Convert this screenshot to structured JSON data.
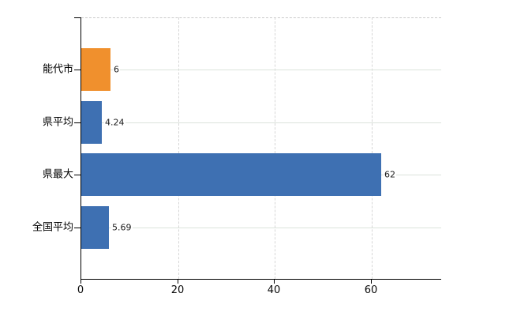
{
  "chart_data": {
    "type": "bar",
    "orientation": "horizontal",
    "title": "",
    "xlabel": "",
    "ylabel": "",
    "categories": [
      "能代市",
      "県平均",
      "県最大",
      "全国平均"
    ],
    "values": [
      6,
      4.24,
      62,
      5.69
    ],
    "value_labels": [
      "6",
      "4.24",
      "62",
      "5.69"
    ],
    "bar_colors": [
      "#f0902d",
      "#3e70b2",
      "#3e70b2",
      "#3e70b2"
    ],
    "x_tick_labels": [
      "0",
      "20",
      "40",
      "60"
    ],
    "x_tick_values": [
      0,
      20,
      40,
      60
    ],
    "xlim": [
      0,
      74.5
    ],
    "grid": true,
    "legend_position": "none"
  },
  "colors": {
    "background": "#ffffff",
    "accent_orange": "#f0902d",
    "bar_blue": "#3e70b2",
    "grid_horizontal": "#dce3dc",
    "grid_vertical": "#d6d6d6",
    "axis": "#000000",
    "label_text": "#000000",
    "value_text": "#1a1a1a"
  }
}
